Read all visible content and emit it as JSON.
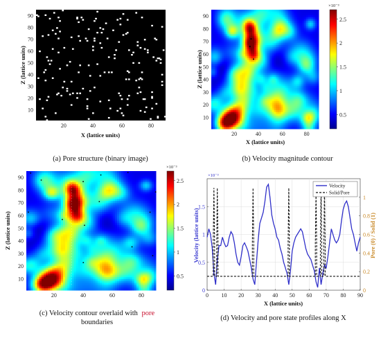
{
  "chart_data": [
    {
      "id": "a",
      "type": "heatmap",
      "caption": "(a) Pore structure (binary image)",
      "xlabel": "X (lattice units)",
      "ylabel": "Z (lattice units)",
      "xticks": [
        20,
        40,
        60,
        80
      ],
      "yticks": [
        10,
        20,
        30,
        40,
        50,
        60,
        70,
        80,
        90
      ],
      "xlim": [
        1,
        90
      ],
      "ylim": [
        1,
        95
      ],
      "colors": {
        "solid": "#000000",
        "pore": "#ffffff"
      },
      "pore_density": 0.02
    },
    {
      "id": "b",
      "type": "heatmap",
      "caption": "(b) Velocity magnitude contour",
      "xlabel": "X (lattice units)",
      "ylabel": "Z (lattice units)",
      "xticks": [
        20,
        40,
        60,
        80
      ],
      "yticks": [
        10,
        20,
        30,
        40,
        50,
        60,
        70,
        80,
        90
      ],
      "xlim": [
        1,
        90
      ],
      "ylim": [
        1,
        95
      ],
      "colorbar": {
        "ticks": [
          0.5,
          1,
          1.5,
          2,
          2.5
        ],
        "range": [
          0.2,
          2.7
        ],
        "exponent": "×10⁻³",
        "colormap": "jet"
      },
      "hotspots": [
        {
          "x": 34,
          "z": 70,
          "value": 2.7
        },
        {
          "x": 17,
          "z": 10,
          "value": 2.6
        },
        {
          "x": 28,
          "z": 35,
          "value": 1.7
        },
        {
          "x": 55,
          "z": 25,
          "value": 1.5
        }
      ]
    },
    {
      "id": "c",
      "type": "heatmap",
      "caption_prefix": "(c) Velocity contour overlaid with",
      "caption_highlight": "pore",
      "caption_line2": "boundaries",
      "xlabel": "X (lattice units)",
      "ylabel": "Z (lattice units)",
      "xticks": [
        20,
        40,
        60,
        80
      ],
      "yticks": [
        10,
        20,
        30,
        40,
        50,
        60,
        70,
        80,
        90
      ],
      "xlim": [
        1,
        90
      ],
      "ylim": [
        1,
        95
      ],
      "colorbar": {
        "ticks": [
          0.5,
          1,
          1.5,
          2,
          2.5
        ],
        "range": [
          0.2,
          2.7
        ],
        "exponent": "×10⁻³",
        "colormap": "jet"
      }
    },
    {
      "id": "d",
      "type": "line",
      "caption": "(d) Velocity and pore state profiles along X",
      "xlabel": "X (lattice units)",
      "ylabel_left": "Velocity (lattice units)",
      "ylabel_right": "Pore (0) / Solid (1)",
      "xlim": [
        0,
        90
      ],
      "xticks": [
        0,
        10,
        20,
        30,
        40,
        50,
        60,
        70,
        80,
        90
      ],
      "ylim_left": [
        0,
        2
      ],
      "yticks_left": [
        0,
        0.5,
        1,
        1.5
      ],
      "left_exponent": "×10⁻³",
      "ylim_right": [
        0,
        1.2
      ],
      "yticks_right": [
        0,
        0.2,
        0.4,
        0.6,
        0.8,
        1
      ],
      "legend_position": "top-right",
      "series": [
        {
          "name": "Velocity",
          "axis": "left",
          "style": "solid",
          "color": "#2f2fc9",
          "x": [
            0,
            1,
            2,
            3,
            4,
            5,
            6,
            7,
            8,
            9,
            10,
            11,
            12,
            13,
            14,
            15,
            16,
            17,
            18,
            19,
            20,
            21,
            22,
            23,
            24,
            25,
            26,
            27,
            28,
            29,
            30,
            31,
            32,
            33,
            34,
            35,
            36,
            37,
            38,
            39,
            40,
            41,
            42,
            43,
            44,
            45,
            46,
            47,
            48,
            49,
            50,
            51,
            52,
            53,
            54,
            55,
            56,
            57,
            58,
            59,
            60,
            61,
            62,
            63,
            64,
            65,
            66,
            67,
            68,
            69,
            70,
            71,
            72,
            73,
            74,
            75,
            76,
            77,
            78,
            79,
            80,
            81,
            82,
            83,
            84,
            85,
            86,
            87,
            88,
            89,
            90
          ],
          "y": [
            0.95,
            1.1,
            1.0,
            0.75,
            0.3,
            0.1,
            0.55,
            0.8,
            0.8,
            0.95,
            0.85,
            0.78,
            0.8,
            0.95,
            1.05,
            1.0,
            0.85,
            0.65,
            0.5,
            0.45,
            0.6,
            0.8,
            0.85,
            0.78,
            0.7,
            0.55,
            0.4,
            0.2,
            0.1,
            0.5,
            0.9,
            1.2,
            1.3,
            1.4,
            1.6,
            1.85,
            1.9,
            1.65,
            1.35,
            1.2,
            1.1,
            0.95,
            0.9,
            0.75,
            0.65,
            0.5,
            0.4,
            0.3,
            0.1,
            0.35,
            0.7,
            0.85,
            0.95,
            1.0,
            1.05,
            1.1,
            1.05,
            0.9,
            0.75,
            0.65,
            0.6,
            0.55,
            0.45,
            0.35,
            0.15,
            0.05,
            0.4,
            0.1,
            0.3,
            0.45,
            0.4,
            0.6,
            0.85,
            1.1,
            1.0,
            0.9,
            0.85,
            0.9,
            1.0,
            1.25,
            1.45,
            1.55,
            1.6,
            1.5,
            1.3,
            1.1,
            1.0,
            0.85,
            0.7,
            0.85,
            0.95
          ]
        },
        {
          "name": "Solid/Pore",
          "axis": "right",
          "style": "dashed",
          "color": "#111111",
          "x": [
            0,
            3.6,
            3.6,
            4.0,
            4.4,
            4.4,
            5.6,
            5.6,
            6.0,
            6.4,
            6.4,
            26.6,
            26.6,
            27.0,
            27.4,
            27.4,
            47.6,
            47.6,
            48.0,
            48.4,
            48.4,
            63.6,
            63.6,
            64.0,
            64.4,
            64.4,
            66.6,
            66.6,
            67.0,
            67.4,
            67.4,
            68.6,
            68.6,
            69.0,
            69.4,
            69.4,
            90
          ],
          "y": [
            0.15,
            0.15,
            0.5,
            1.1,
            0.5,
            0.15,
            0.15,
            0.5,
            1.1,
            0.5,
            0.15,
            0.15,
            0.5,
            1.1,
            0.5,
            0.15,
            0.15,
            0.5,
            1.1,
            0.5,
            0.15,
            0.15,
            0.5,
            1.05,
            0.5,
            0.15,
            0.15,
            0.5,
            1.1,
            0.5,
            0.15,
            0.15,
            0.5,
            1.1,
            0.5,
            0.15,
            0.15
          ]
        }
      ]
    }
  ]
}
